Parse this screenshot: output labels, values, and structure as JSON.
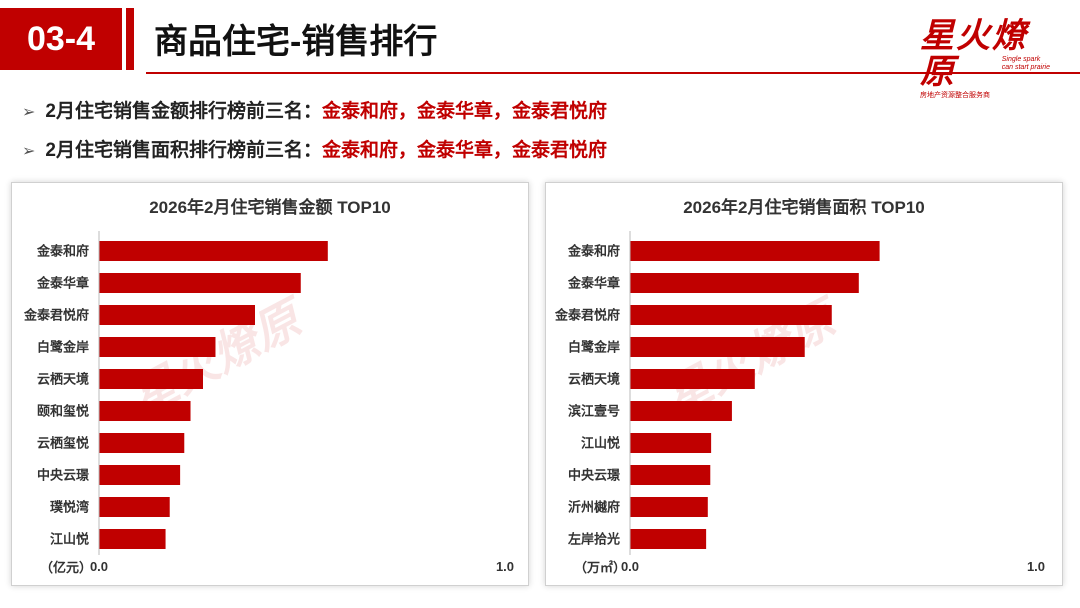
{
  "header": {
    "section_number": "03-4",
    "title": "商品住宅-销售排行",
    "logo_title": "星火燎原",
    "logo_subtitle": "房地产资源整合服务商",
    "logo_en_1": "Single spark",
    "logo_en_2": "can start prairie"
  },
  "bullets": [
    {
      "label": "2月住宅销售金额排行榜前三名：",
      "highlight": "金泰和府，金泰华章，金泰君悦府"
    },
    {
      "label": "2月住宅销售面积排行榜前三名：",
      "highlight": "金泰和府，金泰华章，金泰君悦府"
    }
  ],
  "colors": {
    "accent": "#c00000",
    "bar": "#c00000"
  },
  "chart_data": [
    {
      "type": "bar",
      "orientation": "horizontal",
      "title": "2026年2月住宅销售金额 TOP10",
      "unit_label": "（亿元）",
      "categories": [
        "金泰和府",
        "金泰华章",
        "金泰君悦府",
        "白鹭金岸",
        "云栖天境",
        "颐和玺悦",
        "云栖玺悦",
        "中央云璟",
        "璞悦湾",
        "江山悦"
      ],
      "values": [
        0.55,
        0.485,
        0.375,
        0.28,
        0.25,
        0.22,
        0.205,
        0.195,
        0.17,
        0.16
      ],
      "xlim": [
        0.0,
        1.0
      ],
      "tick_labels": [
        "0.0",
        "1.0"
      ],
      "grid": false
    },
    {
      "type": "bar",
      "orientation": "horizontal",
      "title": "2026年2月住宅销售面积 TOP10",
      "unit_label": "（万㎡）",
      "categories": [
        "金泰和府",
        "金泰华章",
        "金泰君悦府",
        "白鹭金岸",
        "云栖天境",
        "滨江壹号",
        "江山悦",
        "中央云璟",
        "沂州樾府",
        "左岸拾光"
      ],
      "values": [
        0.6,
        0.55,
        0.485,
        0.42,
        0.3,
        0.245,
        0.195,
        0.193,
        0.187,
        0.183
      ],
      "xlim": [
        0.0,
        1.0
      ],
      "tick_labels": [
        "0.0",
        "1.0"
      ],
      "grid": false
    }
  ]
}
